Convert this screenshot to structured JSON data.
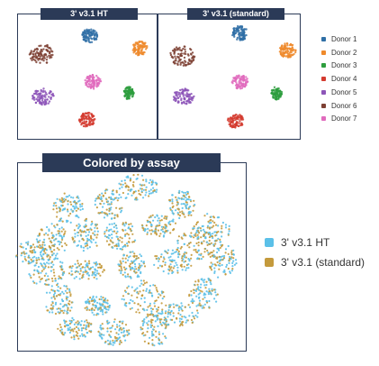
{
  "chart_data": [
    {
      "type": "scatter",
      "title": "3' v3.1 HT",
      "description_clusters": "tSNE clusters colored by donor",
      "series": [
        {
          "name": "Donor 1",
          "color": "#2f6fa6",
          "center": [
            0.52,
            0.12
          ]
        },
        {
          "name": "Donor 2",
          "color": "#ef8a2b",
          "center": [
            0.88,
            0.23
          ]
        },
        {
          "name": "Donor 3",
          "color": "#2e9e3e",
          "center": [
            0.8,
            0.62
          ]
        },
        {
          "name": "Donor 4",
          "color": "#d43b2f",
          "center": [
            0.5,
            0.85
          ]
        },
        {
          "name": "Donor 5",
          "color": "#8d55b8",
          "center": [
            0.18,
            0.65
          ]
        },
        {
          "name": "Donor 6",
          "color": "#7d4033",
          "center": [
            0.17,
            0.28
          ]
        },
        {
          "name": "Donor 7",
          "color": "#e06bbd",
          "center": [
            0.54,
            0.52
          ]
        }
      ]
    },
    {
      "type": "scatter",
      "title": "3' v3.1 (standard)",
      "series": [
        {
          "name": "Donor 1",
          "color": "#2f6fa6",
          "center": [
            0.58,
            0.1
          ]
        },
        {
          "name": "Donor 2",
          "color": "#ef8a2b",
          "center": [
            0.92,
            0.25
          ]
        },
        {
          "name": "Donor 3",
          "color": "#2e9e3e",
          "center": [
            0.84,
            0.62
          ]
        },
        {
          "name": "Donor 4",
          "color": "#d43b2f",
          "center": [
            0.55,
            0.86
          ]
        },
        {
          "name": "Donor 5",
          "color": "#8d55b8",
          "center": [
            0.18,
            0.65
          ]
        },
        {
          "name": "Donor 6",
          "color": "#7d4033",
          "center": [
            0.17,
            0.3
          ]
        },
        {
          "name": "Donor 7",
          "color": "#e06bbd",
          "center": [
            0.58,
            0.52
          ]
        }
      ]
    },
    {
      "type": "scatter",
      "title": "Colored by assay",
      "series": [
        {
          "name": "3' v3.1 HT",
          "color": "#5bc0e8"
        },
        {
          "name": "3' v3.1 (standard)",
          "color": "#c49a3c"
        }
      ]
    }
  ],
  "panels": {
    "top_left_title": "3' v3.1 HT",
    "top_right_title": "3' v3.1 (standard)",
    "bottom_title": "Colored by assay"
  },
  "legend_donor": [
    "Donor 1",
    "Donor 2",
    "Donor 3",
    "Donor 4",
    "Donor 5",
    "Donor 6",
    "Donor 7"
  ],
  "legend_assay": [
    "3' v3.1 HT",
    "3' v3.1 (standard)"
  ]
}
